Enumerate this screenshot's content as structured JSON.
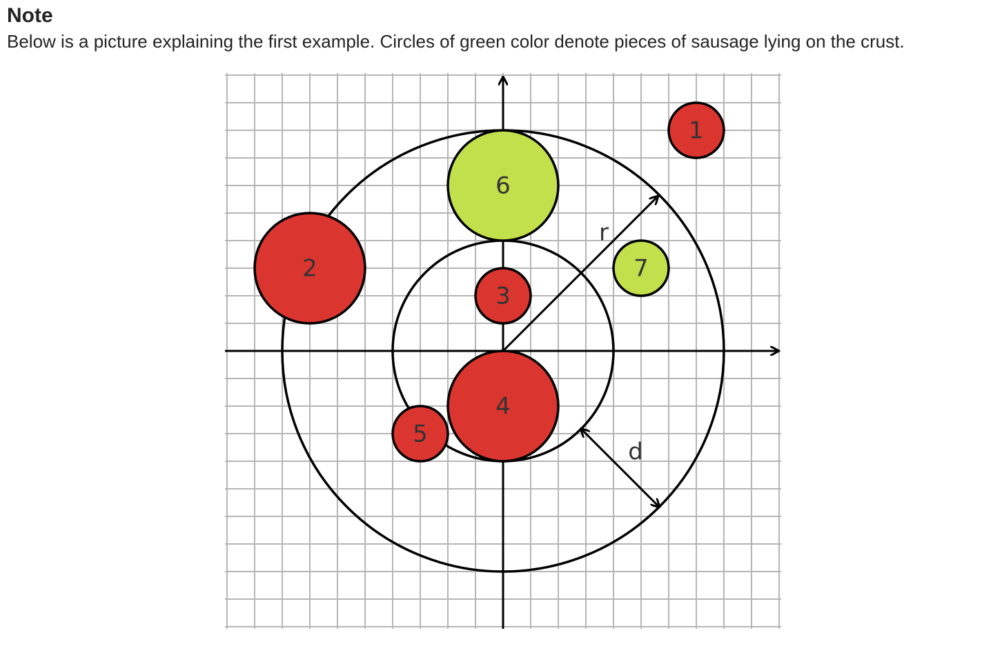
{
  "note": {
    "title": "Note",
    "text": "Below is a picture explaining the first example. Circles of green color denote pieces of sausage lying on the crust."
  },
  "diagram": {
    "colors": {
      "red_piece": "#db3530",
      "green_piece": "#c1e04c",
      "grid_line": "#b5b5b5",
      "stroke": "#000000",
      "label": "#333333"
    },
    "pieces": [
      {
        "label": "1",
        "x": 7,
        "y": 8,
        "r": 1,
        "color": "red"
      },
      {
        "label": "2",
        "x": -7,
        "y": 3,
        "r": 2,
        "color": "red"
      },
      {
        "label": "3",
        "x": 0,
        "y": 2,
        "r": 1,
        "color": "red"
      },
      {
        "label": "4",
        "x": 0,
        "y": -2,
        "r": 2,
        "color": "red"
      },
      {
        "label": "5",
        "x": -3,
        "y": -3,
        "r": 1,
        "color": "red"
      },
      {
        "label": "6",
        "x": 0,
        "y": 6,
        "r": 2,
        "color": "green"
      },
      {
        "label": "7",
        "x": 5,
        "y": 3,
        "r": 1,
        "color": "green"
      }
    ],
    "pizza": {
      "outer_radius": 8,
      "crust_width": 4
    },
    "labels": {
      "r": "r",
      "d": "d"
    }
  }
}
